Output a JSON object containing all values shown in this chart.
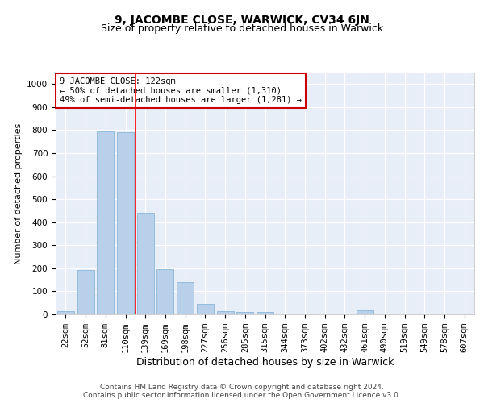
{
  "title": "9, JACOMBE CLOSE, WARWICK, CV34 6JN",
  "subtitle": "Size of property relative to detached houses in Warwick",
  "xlabel": "Distribution of detached houses by size in Warwick",
  "ylabel": "Number of detached properties",
  "categories": [
    "22sqm",
    "52sqm",
    "81sqm",
    "110sqm",
    "139sqm",
    "169sqm",
    "198sqm",
    "227sqm",
    "256sqm",
    "285sqm",
    "315sqm",
    "344sqm",
    "373sqm",
    "402sqm",
    "432sqm",
    "461sqm",
    "490sqm",
    "519sqm",
    "549sqm",
    "578sqm",
    "607sqm"
  ],
  "values": [
    15,
    191,
    793,
    790,
    440,
    195,
    140,
    47,
    14,
    10,
    10,
    0,
    0,
    0,
    0,
    17,
    0,
    0,
    0,
    0,
    0
  ],
  "bar_color": "#b8d0ea",
  "bar_edge_color": "#7bafd4",
  "red_line_x": 3,
  "annotation_text": "9 JACOMBE CLOSE: 122sqm\n← 50% of detached houses are smaller (1,310)\n49% of semi-detached houses are larger (1,281) →",
  "annotation_box_facecolor": "#ffffff",
  "annotation_box_edgecolor": "#cc0000",
  "ylim": [
    0,
    1050
  ],
  "yticks": [
    0,
    100,
    200,
    300,
    400,
    500,
    600,
    700,
    800,
    900,
    1000
  ],
  "background_color": "#e8eef8",
  "grid_color": "#ffffff",
  "footer_text": "Contains HM Land Registry data © Crown copyright and database right 2024.\nContains public sector information licensed under the Open Government Licence v3.0.",
  "title_fontsize": 10,
  "subtitle_fontsize": 9,
  "ylabel_fontsize": 8,
  "xlabel_fontsize": 9,
  "tick_fontsize": 7.5,
  "annotation_fontsize": 7.5,
  "footer_fontsize": 6.5
}
